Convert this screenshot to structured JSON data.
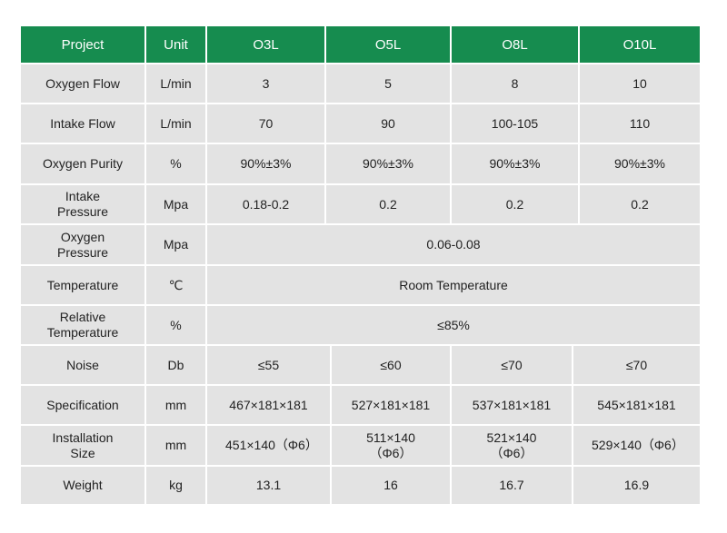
{
  "table": {
    "header": [
      "Project",
      "Unit",
      "O3L",
      "O5L",
      "O8L",
      "O10L"
    ],
    "rows": [
      [
        "Oxygen Flow",
        "L/min",
        "3",
        "5",
        "8",
        "10"
      ],
      [
        "Intake Flow",
        "L/min",
        "70",
        "90",
        "100-105",
        "110"
      ],
      [
        "Oxygen Purity",
        "%",
        "90%±3%",
        "90%±3%",
        "90%±3%",
        "90%±3%"
      ],
      [
        "Intake Pressure",
        "Mpa",
        "0.18-0.2",
        "0.2",
        "0.2",
        "0.2"
      ],
      [
        "Oxygen Pressure",
        "Mpa",
        "0.06-0.08"
      ],
      [
        "Temperature",
        "℃",
        "Room Temperature"
      ],
      [
        "Relative Temperature",
        "%",
        "≤85%"
      ],
      [
        "Noise",
        "Db",
        "≤55",
        "≤60",
        "≤70",
        "≤70"
      ],
      [
        "Specification",
        "mm",
        "467×181×181",
        "527×181×181",
        "537×181×181",
        "545×181×181"
      ],
      [
        "Installation Size",
        "mm",
        "451×140（Φ6）",
        "511×140（Φ6）",
        "521×140（Φ6）",
        "529×140（Φ6）"
      ],
      [
        "Weight",
        "kg",
        "13.1",
        "16",
        "16.7",
        "16.9"
      ]
    ]
  }
}
